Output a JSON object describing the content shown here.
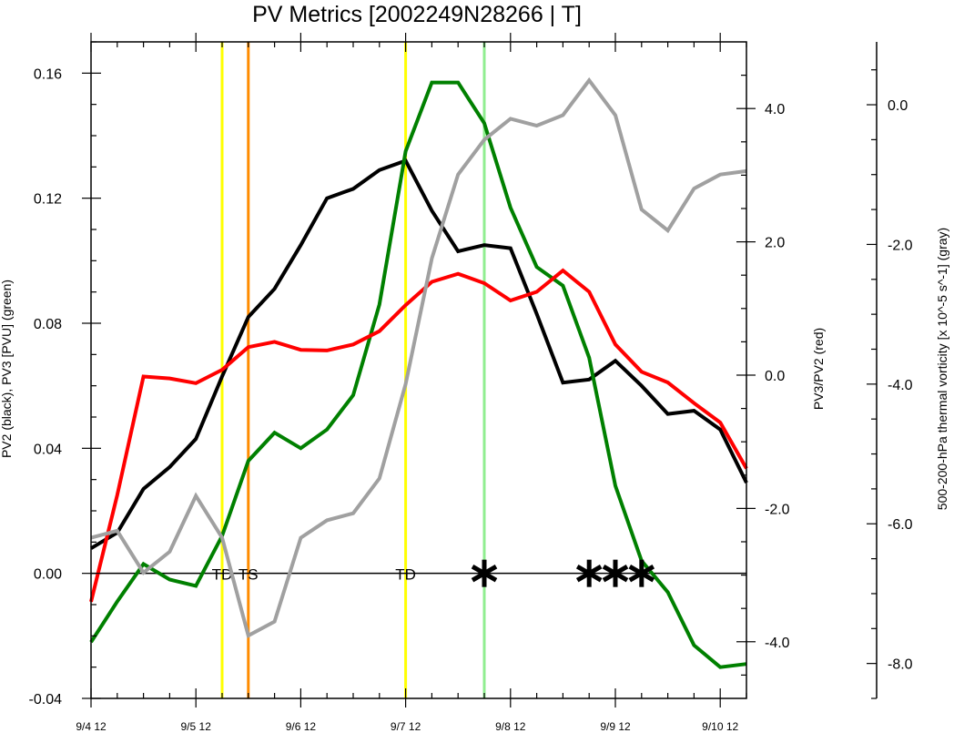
{
  "chart_data": {
    "type": "line",
    "title": "PV Metrics [2002249N28266 | T]",
    "xlabel": "",
    "ylabel_left": "PV2 (black), PV3 [PVU] (green)",
    "ylabel_right": "PV3/PV2 (red)",
    "ylabel_far_right": "500-200-hPa thermal vorticity [x 10^-5 s^-1] (gray)",
    "x_range": [
      0,
      25
    ],
    "x_ticks": [
      {
        "x": 0,
        "label": "9/4 12"
      },
      {
        "x": 4,
        "label": "9/5 12"
      },
      {
        "x": 8,
        "label": "9/6 12"
      },
      {
        "x": 12,
        "label": "9/7 12"
      },
      {
        "x": 16,
        "label": "9/8 12"
      },
      {
        "x": 20,
        "label": "9/9 12"
      },
      {
        "x": 24,
        "label": "9/10 12"
      }
    ],
    "y_left": {
      "range": [
        -0.04,
        0.17
      ],
      "ticks": [
        {
          "v": -0.04,
          "label": "-0.04"
        },
        {
          "v": 0.0,
          "label": "0.00"
        },
        {
          "v": 0.04,
          "label": "0.04"
        },
        {
          "v": 0.08,
          "label": "0.08"
        },
        {
          "v": 0.12,
          "label": "0.12"
        },
        {
          "v": 0.16,
          "label": "0.16"
        }
      ]
    },
    "y_right": {
      "range": [
        -4.85,
        5.0
      ],
      "ticks": [
        {
          "v": -4.0,
          "label": "-4.0"
        },
        {
          "v": -2.0,
          "label": "-2.0"
        },
        {
          "v": 0.0,
          "label": "0.0"
        },
        {
          "v": 2.0,
          "label": "2.0"
        },
        {
          "v": 4.0,
          "label": "4.0"
        }
      ]
    },
    "y_far_right": {
      "range": [
        -8.5,
        0.9
      ],
      "ticks": [
        {
          "v": -8.0,
          "label": "-8.0"
        },
        {
          "v": -6.0,
          "label": "-6.0"
        },
        {
          "v": -4.0,
          "label": "-4.0"
        },
        {
          "v": -2.0,
          "label": "-2.0"
        },
        {
          "v": 0.0,
          "label": "0.0"
        }
      ]
    },
    "series": [
      {
        "color": "#000000",
        "axis": "left",
        "x": [
          0,
          1,
          2,
          3,
          4,
          5,
          6,
          7,
          8,
          9,
          10,
          11,
          12,
          13,
          14,
          15,
          16,
          17,
          18,
          19,
          20,
          21,
          22,
          23,
          24,
          25
        ],
        "values": [
          0.008,
          0.013,
          0.027,
          0.034,
          0.043,
          0.063,
          0.082,
          0.091,
          0.105,
          0.12,
          0.123,
          0.129,
          0.132,
          0.116,
          0.103,
          0.105,
          0.104,
          0.083,
          0.061,
          0.062,
          0.068,
          0.06,
          0.051,
          0.052,
          0.046,
          0.029
        ]
      },
      {
        "color": "#008000",
        "axis": "left",
        "x": [
          0,
          1,
          2,
          3,
          4,
          5,
          6,
          7,
          8,
          9,
          10,
          11,
          12,
          13,
          14,
          15,
          16,
          17,
          18,
          19,
          20,
          21,
          22,
          23,
          24,
          25
        ],
        "values": [
          -0.022,
          -0.009,
          0.003,
          -0.002,
          -0.004,
          0.012,
          0.036,
          0.045,
          0.04,
          0.046,
          0.057,
          0.086,
          0.135,
          0.157,
          0.157,
          0.144,
          0.117,
          0.098,
          0.092,
          0.069,
          0.028,
          0.004,
          -0.006,
          -0.023,
          -0.03,
          -0.029
        ]
      },
      {
        "color": "#ff0000",
        "axis": "right",
        "x": [
          0,
          1,
          2,
          3,
          4,
          5,
          6,
          7,
          8,
          9,
          10,
          11,
          12,
          13,
          14,
          15,
          16,
          17,
          18,
          19,
          20,
          21,
          22,
          23,
          24,
          25
        ],
        "values": [
          -3.4,
          -1.8,
          -0.02,
          -0.05,
          -0.12,
          0.08,
          0.42,
          0.5,
          0.38,
          0.37,
          0.46,
          0.66,
          1.05,
          1.4,
          1.52,
          1.38,
          1.12,
          1.25,
          1.57,
          1.25,
          0.46,
          0.05,
          -0.11,
          -0.42,
          -0.71,
          -1.4
        ]
      },
      {
        "color": "#a0a0a0",
        "axis": "far_right",
        "x": [
          0,
          1,
          2,
          3,
          4,
          5,
          6,
          7,
          8,
          9,
          10,
          11,
          12,
          13,
          14,
          15,
          16,
          17,
          18,
          19,
          20,
          21,
          22,
          23,
          24,
          25
        ],
        "values": [
          -6.2,
          -6.1,
          -6.7,
          -6.4,
          -5.6,
          -6.2,
          -7.6,
          -7.4,
          -6.2,
          -5.95,
          -5.85,
          -5.35,
          -4.0,
          -2.2,
          -1.0,
          -0.5,
          -0.2,
          -0.3,
          -0.15,
          0.35,
          -0.15,
          -1.5,
          -1.8,
          -1.2,
          -1.0,
          -0.95
        ]
      }
    ],
    "vertical_lines": [
      {
        "x": 5.0,
        "color": "#ffff00"
      },
      {
        "x": 6.0,
        "color": "#ff8c00"
      },
      {
        "x": 12.0,
        "color": "#ffff00"
      },
      {
        "x": 15.0,
        "color": "#90ee90"
      }
    ],
    "annotations": [
      {
        "x": 5.0,
        "label": "TD"
      },
      {
        "x": 6.0,
        "label": "TS"
      },
      {
        "x": 12.0,
        "label": "TD"
      }
    ],
    "markers": [
      {
        "x": 15.0,
        "symbol": "*"
      },
      {
        "x": 19.0,
        "symbol": "*"
      },
      {
        "x": 20.0,
        "symbol": "*"
      },
      {
        "x": 21.0,
        "symbol": "*"
      }
    ],
    "grid": false,
    "legend": "none"
  }
}
